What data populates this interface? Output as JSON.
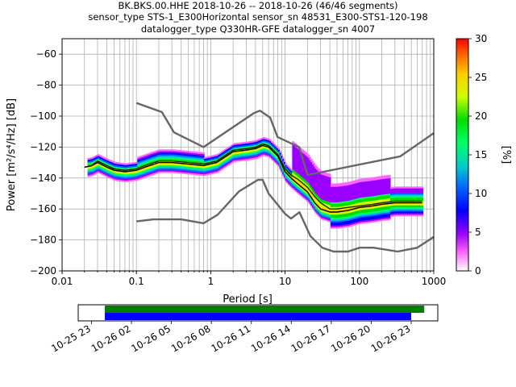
{
  "title_lines": [
    "BK.BKS.00.HHE   2018-10-26 -- 2018-10-26  (46/46 segments)",
    "sensor_type STS-1_E300Horizontal sensor_sn 48531_E300-STS1-120-198",
    "datalogger_type Q330HR-GFE datalogger_sn 4007"
  ],
  "chart_data": [
    {
      "type": "heatmap",
      "name": "ppsd",
      "xlabel": "Period [s]",
      "ylabel": "Power [m²/s⁴/Hz] [dB]",
      "xscale": "log",
      "xlim": [
        0.01,
        1000
      ],
      "ylim": [
        -200,
        -50
      ],
      "x_tick_labels": [
        "0.01",
        "0.1",
        "1",
        "10",
        "100",
        "1000"
      ],
      "y_tick_labels": [
        "−200",
        "−180",
        "−160",
        "−140",
        "−120",
        "−100",
        "−80",
        "−60"
      ],
      "grid": true,
      "colorbar": {
        "label": "[%]",
        "range": [
          0,
          30
        ],
        "tick_labels": [
          "0",
          "5",
          "10",
          "15",
          "20",
          "25",
          "30"
        ]
      },
      "series": [
        {
          "role": "upper-noise-model",
          "color": "#666666",
          "x": [
            0.1,
            0.22,
            0.32,
            0.8,
            3.8,
            4.6,
            6.3,
            7.9,
            15.4,
            20,
            354.8,
            1000
          ],
          "y": [
            -91.5,
            -97.4,
            -110.5,
            -120,
            -98,
            -96.5,
            -101,
            -113.5,
            -120,
            -138,
            -126,
            -111
          ]
        },
        {
          "role": "lower-noise-model",
          "color": "#666666",
          "x": [
            0.1,
            0.17,
            0.4,
            0.8,
            1.24,
            2.4,
            4.3,
            5,
            6,
            10,
            12,
            15.6,
            21.9,
            31.6,
            45,
            70,
            101,
            154,
            328,
            600,
            1000
          ],
          "y": [
            -168,
            -166.7,
            -166.7,
            -169.2,
            -163.7,
            -148.6,
            -141.2,
            -141.2,
            -150,
            -163.1,
            -166.2,
            -162.1,
            -177.5,
            -185,
            -187.5,
            -187.5,
            -185,
            -185,
            -187.5,
            -185,
            -178
          ]
        },
        {
          "role": "mode",
          "color": "#000000",
          "x": [
            0.02,
            0.025,
            0.03,
            0.04,
            0.05,
            0.07,
            0.1,
            0.15,
            0.2,
            0.3,
            0.5,
            0.8,
            1.2,
            2,
            3,
            4,
            5,
            6,
            8,
            10,
            12,
            15,
            20,
            25,
            30,
            40,
            50,
            70,
            100,
            150,
            200,
            300,
            500,
            700
          ],
          "y": [
            -133,
            -132,
            -130,
            -133,
            -135,
            -136,
            -135,
            -132,
            -130,
            -130,
            -131,
            -132,
            -130,
            -123,
            -122,
            -121,
            -119,
            -120,
            -126,
            -136,
            -140,
            -144,
            -149,
            -156,
            -160,
            -162,
            -162,
            -161,
            -159,
            -158,
            -157,
            -156,
            -156,
            -156
          ]
        },
        {
          "role": "mean",
          "color": "#000000",
          "x": [
            0.02,
            0.025,
            0.03,
            0.04,
            0.05,
            0.07,
            0.1,
            0.15,
            0.2,
            0.3,
            0.5,
            0.8,
            1.2,
            2,
            3,
            4,
            5,
            6,
            8,
            10,
            12,
            15,
            20,
            25,
            30,
            40,
            50,
            70,
            100,
            150,
            200,
            300,
            500,
            700
          ],
          "y": [
            -133,
            -132,
            -129,
            -132,
            -134,
            -135,
            -134,
            -131,
            -129,
            -129,
            -130,
            -131,
            -129,
            -122,
            -121,
            -120,
            -118,
            -119,
            -125,
            -134,
            -138,
            -141,
            -146,
            -152,
            -156,
            -160,
            -160,
            -159,
            -158,
            -157,
            -156,
            -155,
            -155,
            -155
          ]
        }
      ]
    },
    {
      "type": "timeline",
      "name": "data-coverage",
      "tick_labels": [
        "10-25 23",
        "10-26 02",
        "10-26 05",
        "10-26 08",
        "10-26 11",
        "10-26 14",
        "10-26 17",
        "10-26 20",
        "10-26 23"
      ],
      "bars": [
        {
          "color": "#008000",
          "start": "2018-10-26 00:00",
          "end": "2018-10-26 23:59"
        },
        {
          "color": "#0000ff",
          "start": "2018-10-26 00:00",
          "end": "2018-10-26 23:00"
        }
      ]
    }
  ]
}
